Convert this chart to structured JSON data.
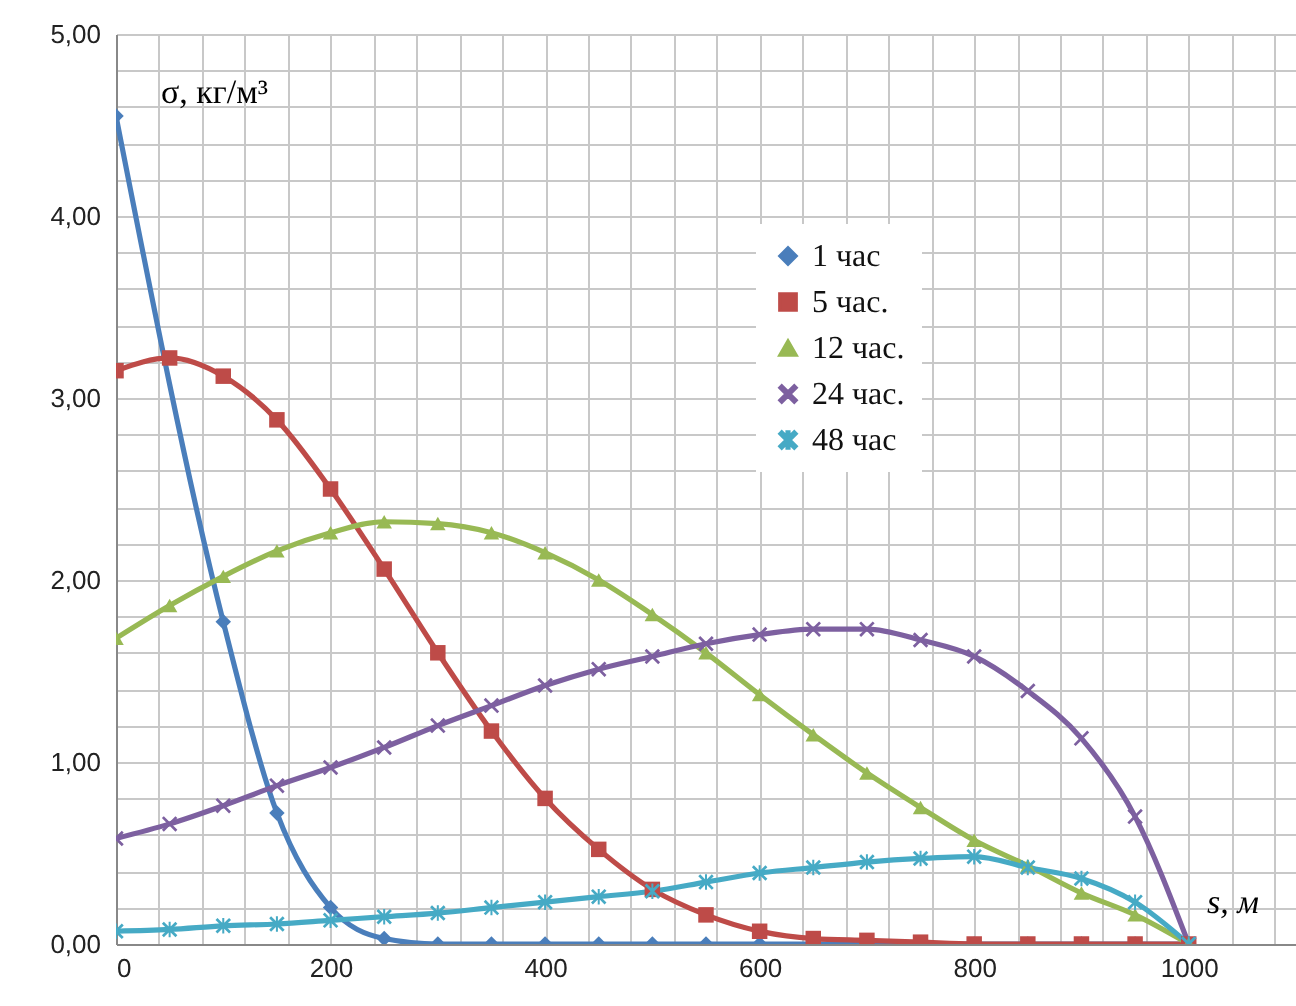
{
  "chart_data": {
    "type": "line",
    "xlabel": "s, м",
    "ylabel": "σ, кг/м³",
    "x": [
      0,
      50,
      100,
      150,
      200,
      250,
      300,
      350,
      400,
      450,
      500,
      550,
      600,
      650,
      700,
      750,
      800,
      850,
      900,
      950,
      1000
    ],
    "series": [
      {
        "name": "1 час",
        "color": "#4a7ebb",
        "marker": "diamond",
        "x": [
          0,
          100,
          150,
          200,
          250,
          300,
          350,
          400,
          450,
          500,
          550,
          600,
          650,
          700,
          750,
          800,
          850,
          900,
          950,
          1000
        ],
        "values": [
          4.55,
          1.77,
          0.72,
          0.2,
          0.03,
          0,
          0,
          0,
          0,
          0,
          0,
          0,
          0,
          0,
          0,
          0,
          0,
          0,
          0,
          0
        ]
      },
      {
        "name": "5 час.",
        "color": "#be4b48",
        "marker": "square",
        "values": [
          3.15,
          3.22,
          3.12,
          2.88,
          2.5,
          2.06,
          1.6,
          1.17,
          0.8,
          0.52,
          0.3,
          0.16,
          0.07,
          0.03,
          0.02,
          0.01,
          0,
          0,
          0,
          0,
          0
        ]
      },
      {
        "name": "12 час.",
        "color": "#98b954",
        "marker": "triangle",
        "values": [
          1.68,
          1.86,
          2.02,
          2.16,
          2.26,
          2.32,
          2.31,
          2.26,
          2.15,
          2,
          1.81,
          1.6,
          1.37,
          1.15,
          0.94,
          0.75,
          0.57,
          0.43,
          0.28,
          0.16,
          0
        ]
      },
      {
        "name": "24 час.",
        "color": "#7d60a0",
        "marker": "cross",
        "values": [
          0.58,
          0.66,
          0.76,
          0.87,
          0.97,
          1.08,
          1.2,
          1.31,
          1.42,
          1.51,
          1.58,
          1.65,
          1.7,
          1.73,
          1.73,
          1.67,
          1.58,
          1.39,
          1.13,
          0.7,
          0
        ]
      },
      {
        "name": "48 час",
        "color": "#46aac5",
        "marker": "star",
        "values": [
          0.07,
          0.08,
          0.1,
          0.11,
          0.13,
          0.15,
          0.17,
          0.2,
          0.23,
          0.26,
          0.29,
          0.34,
          0.39,
          0.42,
          0.45,
          0.47,
          0.48,
          0.42,
          0.36,
          0.23,
          0
        ]
      }
    ],
    "xlim": [
      0,
      1100
    ],
    "xticks": [
      0,
      {
        "value": 40,
        "label": null
      },
      {
        "value": 80,
        "label": null
      },
      {
        "value": 120,
        "label": null
      },
      {
        "value": 160,
        "label": null
      },
      200,
      {
        "value": 240,
        "label": null
      },
      {
        "value": 280,
        "label": null
      },
      {
        "value": 320,
        "label": null
      },
      {
        "value": 360,
        "label": null
      },
      400,
      {
        "value": 440,
        "label": null
      },
      {
        "value": 480,
        "label": null
      },
      {
        "value": 520,
        "label": null
      },
      {
        "value": 560,
        "label": null
      },
      600,
      {
        "value": 640,
        "label": null
      },
      {
        "value": 680,
        "label": null
      },
      {
        "value": 720,
        "label": null
      },
      {
        "value": 760,
        "label": null
      },
      800,
      {
        "value": 840,
        "label": null
      },
      {
        "value": 880,
        "label": null
      },
      {
        "value": 920,
        "label": null
      },
      {
        "value": 960,
        "label": null
      },
      1000,
      {
        "value": 1040,
        "label": null
      },
      {
        "value": 1080,
        "label": null
      }
    ],
    "ylim": [
      0,
      5
    ],
    "yticks": [
      {
        "value": 0,
        "label": "0,00"
      },
      {
        "value": 0.2,
        "label": null
      },
      {
        "value": 0.4,
        "label": null
      },
      {
        "value": 0.6,
        "label": null
      },
      {
        "value": 0.8,
        "label": null
      },
      {
        "value": 1,
        "label": "1,00"
      },
      {
        "value": 1.2,
        "label": null
      },
      {
        "value": 1.4,
        "label": null
      },
      {
        "value": 1.6,
        "label": null
      },
      {
        "value": 1.8,
        "label": null
      },
      {
        "value": 2,
        "label": "2,00"
      },
      {
        "value": 2.2,
        "label": null
      },
      {
        "value": 2.4,
        "label": null
      },
      {
        "value": 2.6,
        "label": null
      },
      {
        "value": 2.8,
        "label": null
      },
      {
        "value": 3,
        "label": "3,00"
      },
      {
        "value": 3.2,
        "label": null
      },
      {
        "value": 3.4,
        "label": null
      },
      {
        "value": 3.6,
        "label": null
      },
      {
        "value": 3.8,
        "label": null
      },
      {
        "value": 4,
        "label": "4,00"
      },
      {
        "value": 4.2,
        "label": null
      },
      {
        "value": 4.4,
        "label": null
      },
      {
        "value": 4.6,
        "label": null
      },
      {
        "value": 4.8,
        "label": null
      },
      {
        "value": 5,
        "label": "5,00"
      }
    ],
    "grid": true,
    "legend": "top right"
  }
}
